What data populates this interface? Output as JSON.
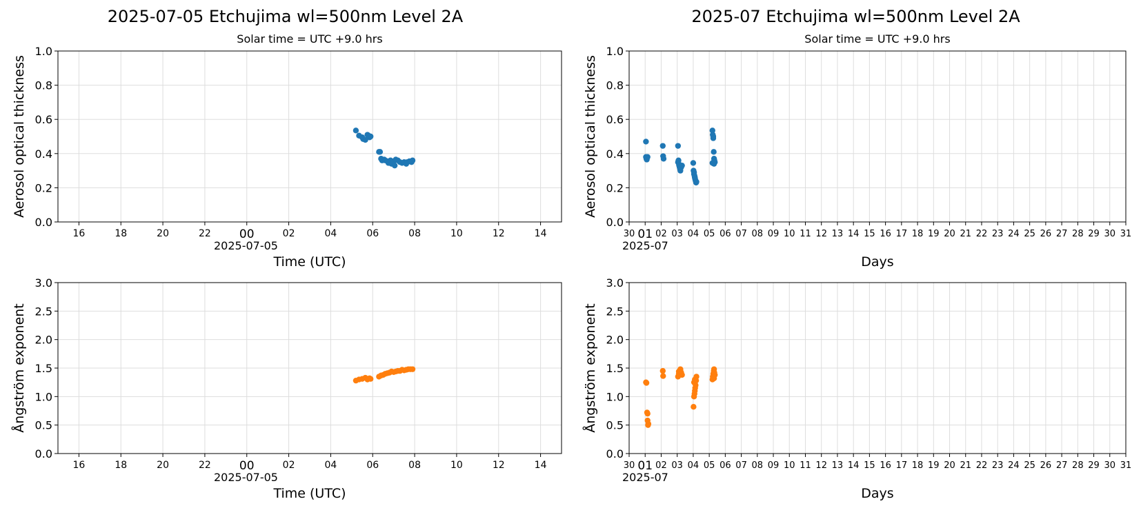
{
  "figure": {
    "title_left": "2025-07-05  Etchujima  wl=500nm  Level 2A",
    "title_right": "2025-07  Etchujima  wl=500nm  Level 2A",
    "colors": {
      "aot": "#1f77b4",
      "angstrom": "#ff7f0e",
      "grid": "#dddddd"
    }
  },
  "chart_data": [
    {
      "type": "scatter",
      "subtitle": "Solar time = UTC +9.0 hrs",
      "xlabel": "Time (UTC)",
      "ylabel": "Aerosol optical thickness",
      "xlim": [
        -9,
        15
      ],
      "ylim": [
        0,
        1.0
      ],
      "yticks": [
        "0.0",
        "0.2",
        "0.4",
        "0.6",
        "0.8",
        "1.0"
      ],
      "xticks": [
        "16",
        "18",
        "20",
        "22",
        "00",
        "02",
        "04",
        "06",
        "08",
        "10",
        "12",
        "14"
      ],
      "date_label": "2025-07-05",
      "grid": true,
      "series": [
        {
          "x": [
            5.2,
            5.35,
            5.5,
            5.55,
            5.65,
            5.75,
            5.8,
            5.85,
            5.9,
            6.3,
            6.35,
            6.4,
            6.45,
            6.55,
            6.6,
            6.7,
            6.75,
            6.8,
            6.85,
            6.9,
            7.0,
            7.05,
            7.1,
            7.2,
            7.3,
            7.4,
            7.5,
            7.6,
            7.65,
            7.75,
            7.85,
            7.9
          ],
          "y": [
            0.535,
            0.505,
            0.495,
            0.485,
            0.48,
            0.51,
            0.505,
            0.495,
            0.5,
            0.41,
            0.41,
            0.37,
            0.36,
            0.365,
            0.36,
            0.355,
            0.345,
            0.35,
            0.36,
            0.34,
            0.355,
            0.33,
            0.365,
            0.36,
            0.35,
            0.345,
            0.35,
            0.34,
            0.35,
            0.355,
            0.35,
            0.36
          ]
        }
      ]
    },
    {
      "type": "scatter",
      "subtitle": "Solar time = UTC +9.0 hrs",
      "xlabel": "Days",
      "ylabel": "Aerosol optical thickness",
      "xlim": [
        0,
        31
      ],
      "ylim": [
        0,
        1.0
      ],
      "yticks": [
        "0.0",
        "0.2",
        "0.4",
        "0.6",
        "0.8",
        "1.0"
      ],
      "xticks": [
        "30",
        "01",
        "02",
        "03",
        "04",
        "05",
        "06",
        "07",
        "08",
        "09",
        "10",
        "11",
        "12",
        "13",
        "14",
        "15",
        "16",
        "17",
        "18",
        "19",
        "20",
        "21",
        "22",
        "23",
        "24",
        "25",
        "26",
        "27",
        "28",
        "29",
        "30",
        "31"
      ],
      "date_label": "2025-07",
      "grid": true,
      "series": [
        {
          "x": [
            1.05,
            1.05,
            1.08,
            1.1,
            1.12,
            1.15,
            2.1,
            2.12,
            2.15,
            3.05,
            3.08,
            3.1,
            3.12,
            3.15,
            3.18,
            3.2,
            3.25,
            3.3,
            3.05,
            4.0,
            4.02,
            4.05,
            4.08,
            4.1,
            4.12,
            4.15,
            4.18,
            4.2,
            4.05,
            4.1,
            5.2,
            5.22,
            5.25,
            5.25,
            5.28,
            5.3,
            5.32,
            5.35,
            5.3,
            5.2
          ],
          "y": [
            0.47,
            0.38,
            0.37,
            0.365,
            0.375,
            0.38,
            0.445,
            0.385,
            0.37,
            0.445,
            0.36,
            0.34,
            0.33,
            0.32,
            0.31,
            0.3,
            0.32,
            0.33,
            0.35,
            0.345,
            0.3,
            0.28,
            0.27,
            0.26,
            0.25,
            0.24,
            0.23,
            0.235,
            0.29,
            0.26,
            0.535,
            0.51,
            0.5,
            0.49,
            0.41,
            0.37,
            0.36,
            0.35,
            0.34,
            0.345
          ]
        }
      ]
    },
    {
      "type": "scatter",
      "xlabel": "Time (UTC)",
      "ylabel": "Ångström exponent",
      "xlim": [
        -9,
        15
      ],
      "ylim": [
        0,
        3.0
      ],
      "yticks": [
        "0.0",
        "0.5",
        "1.0",
        "1.5",
        "2.0",
        "2.5",
        "3.0"
      ],
      "xticks": [
        "16",
        "18",
        "20",
        "22",
        "00",
        "02",
        "04",
        "06",
        "08",
        "10",
        "12",
        "14"
      ],
      "date_label": "2025-07-05",
      "grid": true,
      "series": [
        {
          "x": [
            5.2,
            5.35,
            5.5,
            5.65,
            5.75,
            5.85,
            5.9,
            6.3,
            6.4,
            6.5,
            6.6,
            6.7,
            6.8,
            6.9,
            7.0,
            7.1,
            7.2,
            7.3,
            7.4,
            7.5,
            7.6,
            7.7,
            7.8,
            7.9
          ],
          "y": [
            1.28,
            1.3,
            1.31,
            1.33,
            1.3,
            1.32,
            1.31,
            1.35,
            1.37,
            1.38,
            1.4,
            1.41,
            1.42,
            1.44,
            1.43,
            1.44,
            1.45,
            1.45,
            1.47,
            1.46,
            1.47,
            1.48,
            1.48,
            1.48
          ]
        }
      ]
    },
    {
      "type": "scatter",
      "xlabel": "Days",
      "ylabel": "Ångström exponent",
      "xlim": [
        0,
        31
      ],
      "ylim": [
        0,
        3.0
      ],
      "yticks": [
        "0.0",
        "0.5",
        "1.0",
        "1.5",
        "2.0",
        "2.5",
        "3.0"
      ],
      "xticks": [
        "30",
        "01",
        "02",
        "03",
        "04",
        "05",
        "06",
        "07",
        "08",
        "09",
        "10",
        "11",
        "12",
        "13",
        "14",
        "15",
        "16",
        "17",
        "18",
        "19",
        "20",
        "21",
        "22",
        "23",
        "24",
        "25",
        "26",
        "27",
        "28",
        "29",
        "30",
        "31"
      ],
      "date_label": "2025-07",
      "grid": true,
      "series": [
        {
          "x": [
            1.05,
            1.08,
            1.12,
            1.15,
            1.15,
            1.18,
            1.2,
            2.1,
            2.12,
            3.05,
            3.1,
            3.15,
            3.2,
            3.25,
            3.3,
            3.1,
            3.2,
            4.02,
            4.05,
            4.08,
            4.1,
            4.12,
            4.15,
            4.18,
            4.2,
            4.05,
            4.1,
            5.2,
            5.22,
            5.25,
            5.28,
            5.3,
            5.32,
            5.35,
            5.3
          ],
          "y": [
            1.25,
            1.24,
            0.72,
            0.7,
            0.58,
            0.5,
            0.52,
            1.45,
            1.36,
            1.35,
            1.4,
            1.45,
            1.48,
            1.42,
            1.38,
            1.44,
            1.46,
            0.82,
            1.0,
            1.05,
            1.1,
            1.15,
            1.2,
            1.28,
            1.35,
            1.25,
            1.3,
            1.3,
            1.35,
            1.4,
            1.45,
            1.48,
            1.42,
            1.38,
            1.32
          ]
        }
      ]
    }
  ]
}
